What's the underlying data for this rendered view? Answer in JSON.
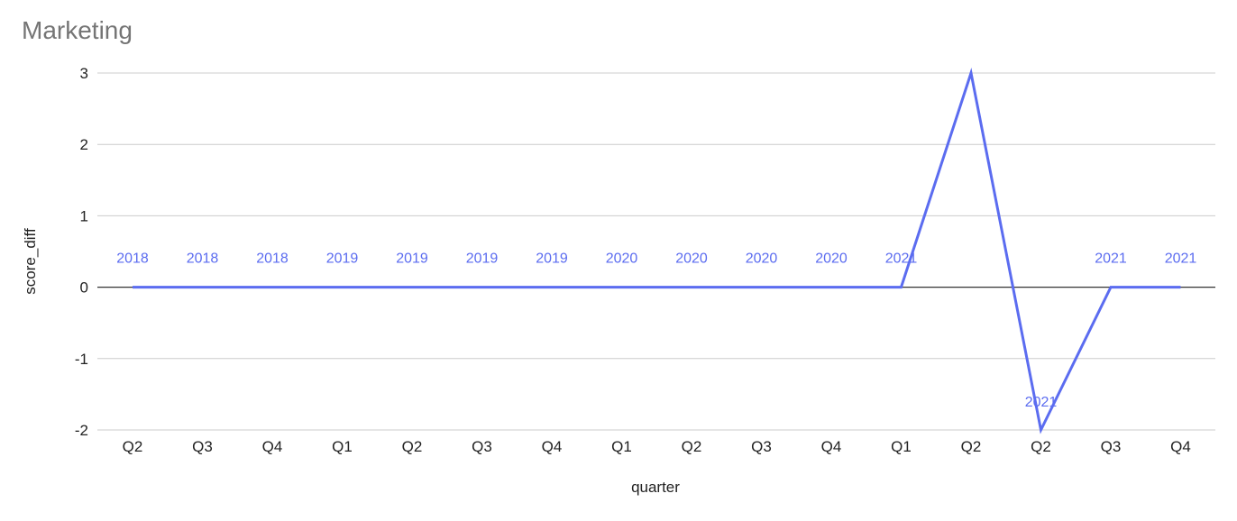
{
  "chart_data": {
    "type": "line",
    "title": "Marketing",
    "xlabel": "quarter",
    "ylabel": "score_diff",
    "categories": [
      "Q2",
      "Q3",
      "Q4",
      "Q1",
      "Q2",
      "Q3",
      "Q4",
      "Q1",
      "Q2",
      "Q3",
      "Q4",
      "Q1",
      "Q2",
      "Q2",
      "Q3",
      "Q4"
    ],
    "category_years": [
      "2018",
      "2018",
      "2018",
      "2019",
      "2019",
      "2019",
      "2019",
      "2020",
      "2020",
      "2020",
      "2020",
      "2021",
      "",
      "2021",
      "2021",
      "2021"
    ],
    "series": [
      {
        "values": [
          0,
          0,
          0,
          0,
          0,
          0,
          0,
          0,
          0,
          0,
          0,
          0,
          3,
          -2,
          0,
          0
        ]
      }
    ],
    "ylim": [
      -2,
      3
    ],
    "yticks": [
      -2,
      -1,
      0,
      1,
      2,
      3
    ],
    "grid": true,
    "legend": "none",
    "colors": {
      "line": "#5b6cf0",
      "grid": "#cccccc",
      "zero_line": "#333333"
    }
  }
}
